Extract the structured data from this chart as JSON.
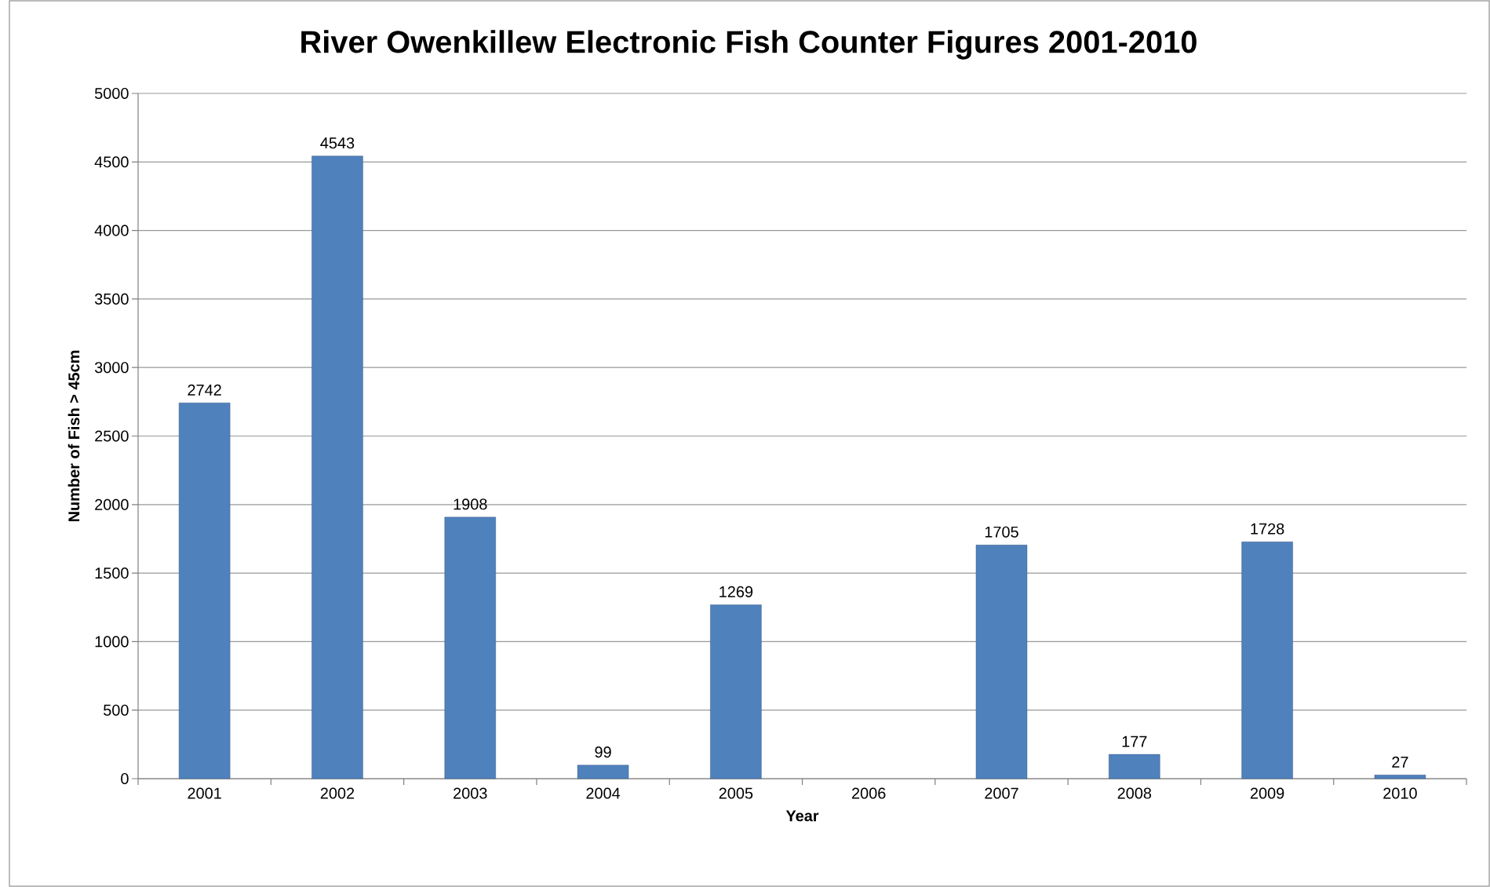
{
  "chart_data": {
    "type": "bar",
    "title": "River Owenkillew Electronic Fish Counter Figures 2001-2010",
    "xlabel": "Year",
    "ylabel": "Number of Fish > 45cm",
    "categories": [
      "2001",
      "2002",
      "2003",
      "2004",
      "2005",
      "2006",
      "2007",
      "2008",
      "2009",
      "2010"
    ],
    "values": [
      2742,
      4543,
      1908,
      99,
      1269,
      null,
      1705,
      177,
      1728,
      27
    ],
    "color": "#4f81bd",
    "data_labels": true,
    "ylim": [
      0,
      5000
    ],
    "yticks": [
      0,
      500,
      1000,
      1500,
      2000,
      2500,
      3000,
      3500,
      4000,
      4500,
      5000
    ],
    "grid": "y"
  }
}
